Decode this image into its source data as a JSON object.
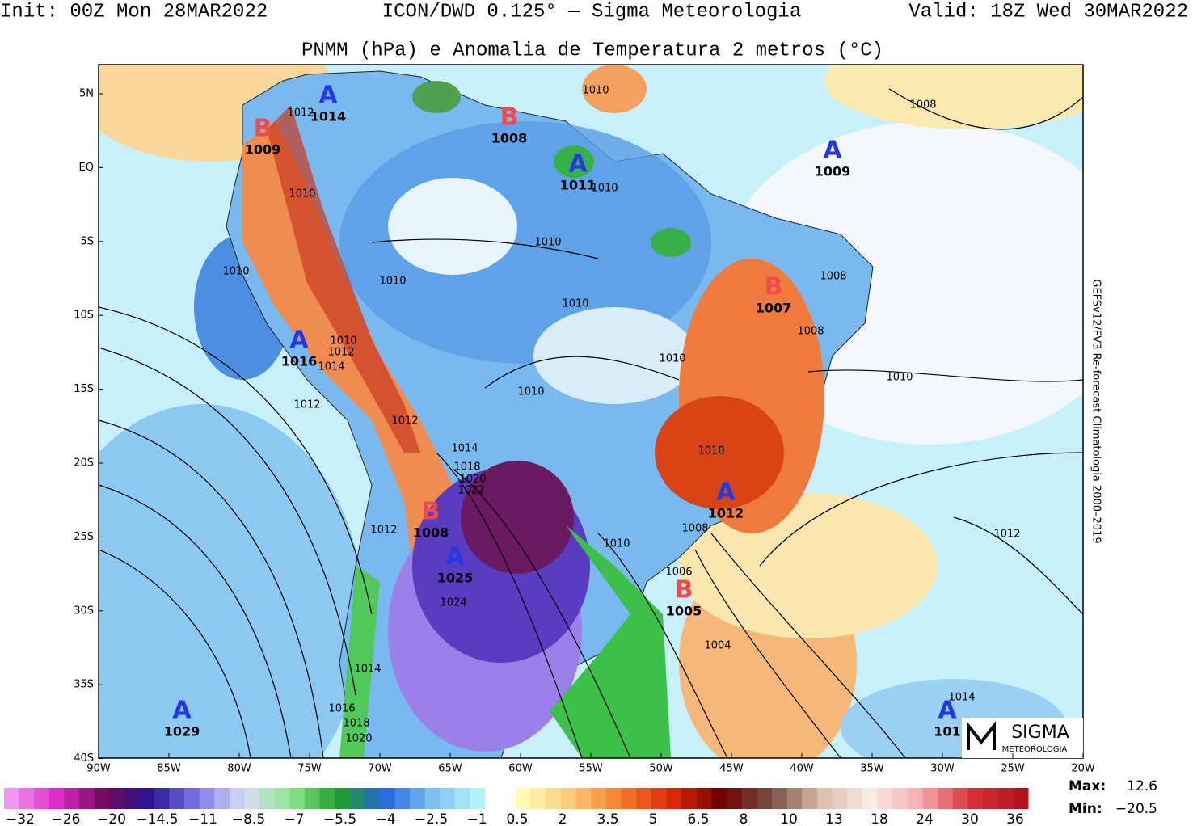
{
  "header": {
    "init": "Init: 00Z Mon 28MAR2022",
    "model": "ICON/DWD 0.125° — Sigma Meteorologia",
    "valid": "Valid: 18Z Wed 30MAR2022",
    "title": "PNMM (hPa) e Anomalia de Temperatura 2 metros (°C)"
  },
  "side_note": "GEFSv12/FV3 Re-forecast Climatologia 2000–2019",
  "axes": {
    "lat": [
      "5N",
      "EQ",
      "5S",
      "10S",
      "15S",
      "20S",
      "25S",
      "30S",
      "35S",
      "40S"
    ],
    "lon": [
      "90W",
      "85W",
      "80W",
      "75W",
      "70W",
      "65W",
      "60W",
      "55W",
      "50W",
      "45W",
      "40W",
      "35W",
      "30W",
      "25W",
      "20W"
    ]
  },
  "centers": [
    {
      "letter": "A",
      "value": "1014"
    },
    {
      "letter": "B",
      "value": "1009"
    },
    {
      "letter": "B",
      "value": "1008"
    },
    {
      "letter": "A",
      "value": "1011"
    },
    {
      "letter": "A",
      "value": "1009"
    },
    {
      "letter": "B",
      "value": "1007"
    },
    {
      "letter": "A",
      "value": "1016"
    },
    {
      "letter": "A",
      "value": "1012"
    },
    {
      "letter": "B",
      "value": "1008"
    },
    {
      "letter": "A",
      "value": "1025"
    },
    {
      "letter": "B",
      "value": "1005"
    },
    {
      "letter": "A",
      "value": "1029"
    },
    {
      "letter": "A",
      "value": "101"
    }
  ],
  "contour_labels": [
    "1010",
    "1008",
    "1012",
    "1010",
    "1010",
    "1010",
    "1010",
    "1010",
    "1008",
    "1010",
    "1008",
    "1010",
    "1012",
    "1014",
    "1010",
    "1010",
    "1012",
    "1010",
    "1012",
    "1014",
    "1010",
    "1018",
    "1020",
    "1022",
    "1012",
    "1008",
    "1012",
    "1010",
    "1006",
    "1024",
    "1004",
    "1014",
    "1016",
    "1018",
    "1020",
    "1014"
  ],
  "colorbar": {
    "negative": [
      "−32",
      "−26",
      "−20",
      "−14.5",
      "−11",
      "−8.5",
      "−7",
      "−5.5",
      "−4",
      "−2.5",
      "−1"
    ],
    "positive": [
      "0.5",
      "2",
      "3.5",
      "5",
      "6.5",
      "8",
      "10",
      "13",
      "18",
      "24",
      "30",
      "36"
    ]
  },
  "stats": {
    "max_label": "Max:",
    "max": "12.6",
    "min_label": "Min:",
    "min": "−20.5"
  },
  "logo": {
    "name": "SIGMA",
    "sub": "METEOROLOGIA"
  }
}
